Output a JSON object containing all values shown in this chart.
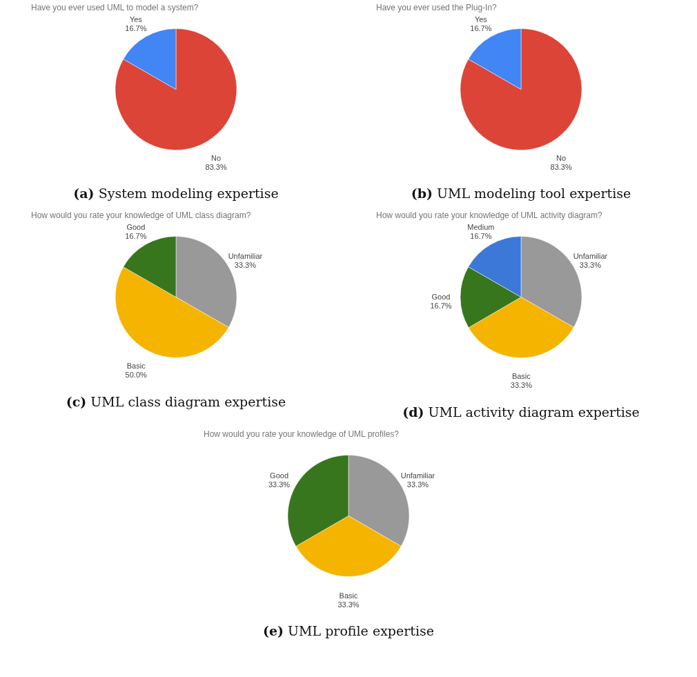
{
  "chart_data": [
    {
      "type": "pie",
      "title": "Have you ever used UML to model a system?",
      "categories": [
        "No",
        "Yes"
      ],
      "values": [
        83.3,
        16.7
      ],
      "colors": [
        "#db4437",
        "#4285f4"
      ],
      "value_labels": [
        "83.3%",
        "16.7%"
      ],
      "annotations": [
        "(a) System modeling expertise"
      ]
    },
    {
      "type": "pie",
      "title": "Have you ever used the Plug-In?",
      "categories": [
        "No",
        "Yes"
      ],
      "values": [
        83.3,
        16.7
      ],
      "colors": [
        "#db4437",
        "#4285f4"
      ],
      "value_labels": [
        "83.3%",
        "16.7%"
      ],
      "annotations": [
        "(b) UML modeling tool expertise"
      ]
    },
    {
      "type": "pie",
      "title": "How would you rate your knowledge of UML class diagram?",
      "categories": [
        "Unfamiliar",
        "Basic",
        "Good"
      ],
      "values": [
        33.3,
        50.0,
        16.7
      ],
      "colors": [
        "#999999",
        "#f4b400",
        "#38761d"
      ],
      "value_labels": [
        "33.3%",
        "50.0%",
        "16.7%"
      ],
      "annotations": [
        "(c) UML class diagram expertise"
      ]
    },
    {
      "type": "pie",
      "title": "How would you rate your knowledge of UML activity diagram?",
      "categories": [
        "Unfamiliar",
        "Basic",
        "Good",
        "Medium"
      ],
      "values": [
        33.3,
        33.3,
        16.7,
        16.7
      ],
      "colors": [
        "#999999",
        "#f4b400",
        "#38761d",
        "#3c78d8"
      ],
      "value_labels": [
        "33.3%",
        "33.3%",
        "16.7%",
        "16.7%"
      ],
      "annotations": [
        "(d) UML activity diagram expertise"
      ]
    },
    {
      "type": "pie",
      "title": "How would you rate your knowledge of UML profiles?",
      "categories": [
        "Unfamiliar",
        "Basic",
        "Good"
      ],
      "values": [
        33.3,
        33.3,
        33.3
      ],
      "colors": [
        "#999999",
        "#f4b400",
        "#38761d"
      ],
      "value_labels": [
        "33.3%",
        "33.3%",
        "33.3%"
      ],
      "annotations": [
        "(e) UML profile expertise"
      ]
    }
  ]
}
